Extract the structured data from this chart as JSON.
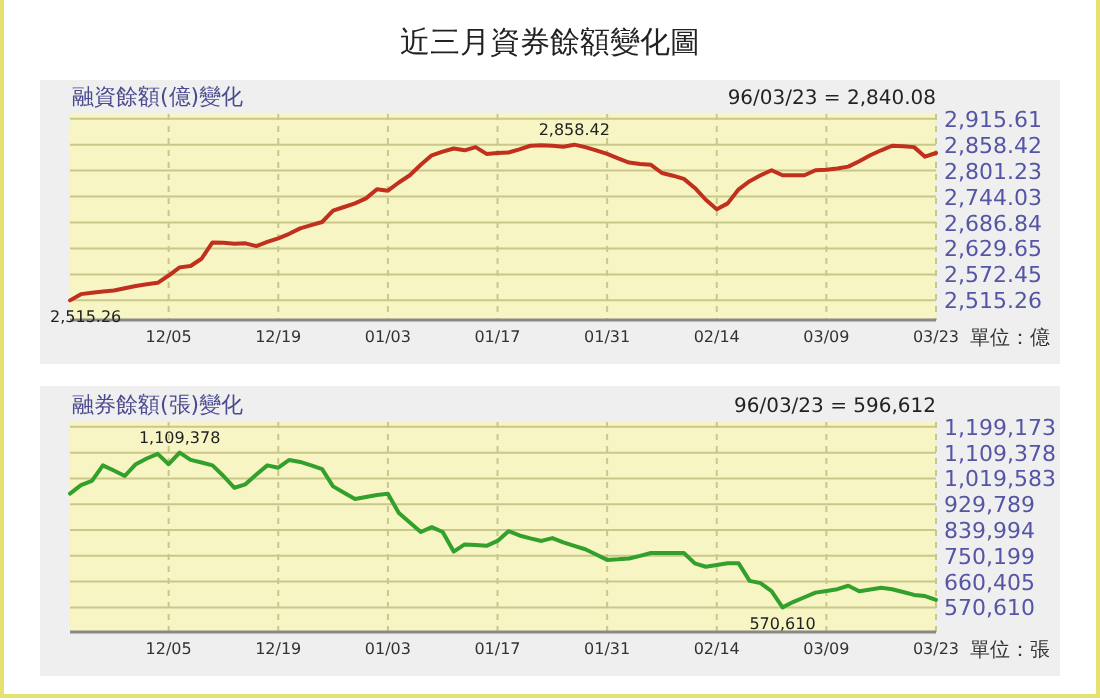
{
  "chart_data": [
    {
      "type": "line",
      "title": "近三月資券餘額變化圖",
      "subtitle": "融資餘額(億)變化",
      "ylabel": "單位：億",
      "color": "#c0301c",
      "grid": true,
      "categories": [
        null,
        null,
        null,
        null,
        null,
        null,
        null,
        null,
        null,
        "12/05",
        null,
        null,
        null,
        null,
        null,
        null,
        null,
        null,
        null,
        "12/19",
        null,
        null,
        null,
        null,
        null,
        null,
        null,
        null,
        null,
        "01/03",
        null,
        null,
        null,
        null,
        null,
        null,
        null,
        null,
        null,
        "01/17",
        null,
        null,
        null,
        null,
        null,
        null,
        null,
        null,
        null,
        "01/31",
        null,
        null,
        null,
        null,
        null,
        null,
        null,
        null,
        null,
        "02/14",
        null,
        null,
        null,
        null,
        null,
        null,
        null,
        null,
        null,
        "03/09",
        null,
        null,
        null,
        null,
        null,
        null,
        null,
        null,
        null,
        "03/23"
      ],
      "values": [
        2515.26,
        2529,
        2532,
        2535,
        2537,
        2542,
        2547,
        2551,
        2554,
        2570,
        2588,
        2591,
        2607,
        2643,
        2642,
        2640,
        2641,
        2635,
        2644,
        2652,
        2662,
        2674,
        2681,
        2688,
        2713,
        2721,
        2729,
        2740,
        2760,
        2757,
        2775,
        2791,
        2814,
        2835,
        2843,
        2850,
        2846,
        2853,
        2838,
        2840,
        2841,
        2848,
        2856,
        2857,
        2856,
        2854,
        2858.42,
        2853,
        2846,
        2838,
        2828,
        2819,
        2816,
        2814,
        2796,
        2790,
        2783,
        2763,
        2737,
        2716,
        2729,
        2760,
        2778,
        2791,
        2802,
        2791,
        2791,
        2791,
        2802,
        2803,
        2806,
        2810,
        2822,
        2835,
        2846,
        2856,
        2855,
        2853,
        2832,
        2840.08
      ],
      "ylim": [
        2472,
        2926
      ],
      "yticks": [
        {
          "value": 2515.26,
          "label": "2,515.26"
        },
        {
          "value": 2572.45,
          "label": "2,572.45"
        },
        {
          "value": 2629.65,
          "label": "2,629.65"
        },
        {
          "value": 2686.84,
          "label": "2,686.84"
        },
        {
          "value": 2744.03,
          "label": "2,744.03"
        },
        {
          "value": 2801.23,
          "label": "2,801.23"
        },
        {
          "value": 2858.42,
          "label": "2,858.42"
        },
        {
          "value": 2915.61,
          "label": "2,915.61"
        }
      ],
      "annotations": [
        "96/03/23 = 2,840.08",
        {
          "text": "2,858.42",
          "y": 2858.42
        },
        {
          "text": "2,515.26",
          "y": 2515.26
        }
      ]
    },
    {
      "type": "line",
      "subtitle": "融券餘額(張)變化",
      "ylabel": "單位：張",
      "color": "#33a02c",
      "grid": true,
      "categories": [
        null,
        null,
        null,
        null,
        null,
        null,
        null,
        null,
        null,
        "12/05",
        null,
        null,
        null,
        null,
        null,
        null,
        null,
        null,
        null,
        "12/19",
        null,
        null,
        null,
        null,
        null,
        null,
        null,
        null,
        null,
        "01/03",
        null,
        null,
        null,
        null,
        null,
        null,
        null,
        null,
        null,
        "01/17",
        null,
        null,
        null,
        null,
        null,
        null,
        null,
        null,
        null,
        "01/31",
        null,
        null,
        null,
        null,
        null,
        null,
        null,
        null,
        null,
        "02/14",
        null,
        null,
        null,
        null,
        null,
        null,
        null,
        null,
        null,
        "03/09",
        null,
        null,
        null,
        null,
        null,
        null,
        null,
        null,
        null,
        "03/23"
      ],
      "values": [
        967000,
        996000,
        1011000,
        1065000,
        1047000,
        1028000,
        1069000,
        1089000,
        1105000,
        1069000,
        1109378,
        1084000,
        1075000,
        1065000,
        1028000,
        987000,
        999000,
        1033000,
        1065000,
        1057000,
        1084000,
        1077000,
        1065000,
        1052000,
        992000,
        970000,
        948000,
        955000,
        962000,
        966000,
        899000,
        866000,
        833000,
        850000,
        833000,
        765000,
        790000,
        788000,
        785000,
        802000,
        836000,
        821000,
        811000,
        802000,
        812000,
        797000,
        785000,
        773000,
        755000,
        736000,
        738000,
        741000,
        750000,
        760000,
        760000,
        760000,
        760000,
        724000,
        712000,
        718000,
        724000,
        724000,
        663000,
        655000,
        627000,
        570610,
        590000,
        606000,
        622000,
        628000,
        634000,
        646000,
        627000,
        633000,
        639000,
        634000,
        624000,
        614000,
        610000,
        596612
      ],
      "ylim": [
        485000,
        1216000
      ],
      "yticks": [
        {
          "value": 570610,
          "label": "570,610"
        },
        {
          "value": 660405,
          "label": "660,405"
        },
        {
          "value": 750199,
          "label": "750,199"
        },
        {
          "value": 839994,
          "label": "839,994"
        },
        {
          "value": 929789,
          "label": "929,789"
        },
        {
          "value": 1019583,
          "label": "1,019,583"
        },
        {
          "value": 1109378,
          "label": "1,109,378"
        },
        {
          "value": 1199173,
          "label": "1,199,173"
        }
      ],
      "annotations": [
        "96/03/23 = 596,612",
        {
          "text": "1,109,378",
          "y": 1109378
        },
        {
          "text": "570,610",
          "y": 570610
        }
      ]
    }
  ]
}
